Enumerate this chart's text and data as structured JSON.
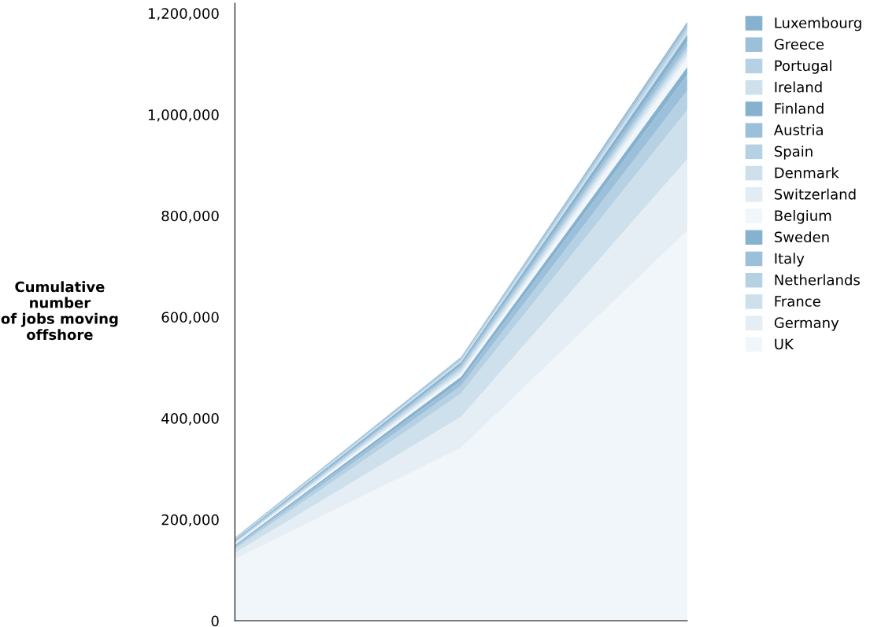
{
  "chart_data": {
    "type": "area",
    "stacked": true,
    "ylabel": "Cumulative\nnumber\nof jobs moving\noffshore",
    "categories": [
      null,
      null,
      null
    ],
    "series": [
      {
        "name": "UK",
        "color": "#f1f6fa",
        "values": [
          122000,
          342000,
          771000
        ]
      },
      {
        "name": "Germany",
        "color": "#e5eef5",
        "values": [
          12000,
          61000,
          141000
        ]
      },
      {
        "name": "France",
        "color": "#cde0ec",
        "values": [
          8000,
          46000,
          97000
        ]
      },
      {
        "name": "Netherlands",
        "color": "#b5d1e3",
        "values": [
          3000,
          15000,
          39000
        ]
      },
      {
        "name": "Italy",
        "color": "#9dc0da",
        "values": [
          3000,
          10000,
          31000
        ]
      },
      {
        "name": "Sweden",
        "color": "#86b1cf",
        "values": [
          2000,
          8000,
          15000
        ]
      },
      {
        "name": "Belgium",
        "color": "#f1f6fa",
        "values": [
          2000,
          6000,
          18000
        ]
      },
      {
        "name": "Switzerland",
        "color": "#e1ecf4",
        "values": [
          1000,
          4000,
          8000
        ]
      },
      {
        "name": "Denmark",
        "color": "#cde0ec",
        "values": [
          1000,
          5000,
          7000
        ]
      },
      {
        "name": "Spain",
        "color": "#b5d1e3",
        "values": [
          2000,
          5000,
          8000
        ]
      },
      {
        "name": "Austria",
        "color": "#9dc0da",
        "values": [
          2000,
          4000,
          10000
        ]
      },
      {
        "name": "Finland",
        "color": "#86b1cf",
        "values": [
          2000,
          5000,
          13000
        ]
      },
      {
        "name": "Ireland",
        "color": "#cde0ec",
        "values": [
          1000,
          3000,
          7000
        ]
      },
      {
        "name": "Portugal",
        "color": "#b5d1e3",
        "values": [
          1000,
          3000,
          8000
        ]
      },
      {
        "name": "Greece",
        "color": "#9dc0da",
        "values": [
          1000,
          3000,
          6000
        ]
      },
      {
        "name": "Luxembourg",
        "color": "#86b1cf",
        "values": [
          1000,
          1000,
          4000
        ]
      }
    ],
    "ylim": [
      0,
      1220000
    ],
    "yticks": [
      0,
      {
        "value": 200000,
        "label": "200,000"
      },
      {
        "value": 400000,
        "label": "400,000"
      },
      {
        "value": 600000,
        "label": "600,000"
      },
      {
        "value": 800000,
        "label": "800,000"
      },
      {
        "value": 1000000,
        "label": "1,000,000"
      },
      {
        "value": 1200000,
        "label": "1,200,000"
      }
    ],
    "grid": false,
    "legend": "right"
  }
}
